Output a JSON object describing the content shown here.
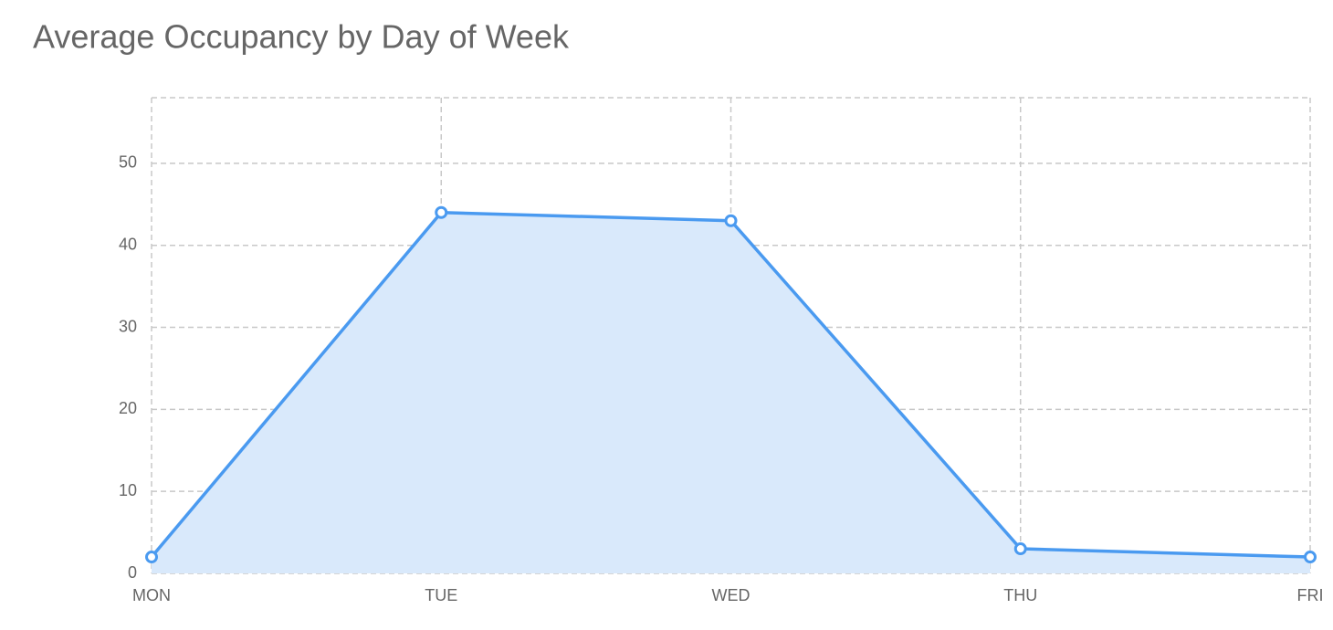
{
  "chart_data": {
    "type": "area",
    "title": "Average Occupancy by Day of Week",
    "categories": [
      "MON",
      "TUE",
      "WED",
      "THU",
      "FRI"
    ],
    "values": [
      2,
      44,
      43,
      3,
      2
    ],
    "color": "#4a9af0",
    "fill": "#d9e9fb",
    "ylim": [
      0,
      58
    ],
    "yticks": [
      0,
      10,
      20,
      30,
      40,
      50
    ],
    "grid": true
  }
}
